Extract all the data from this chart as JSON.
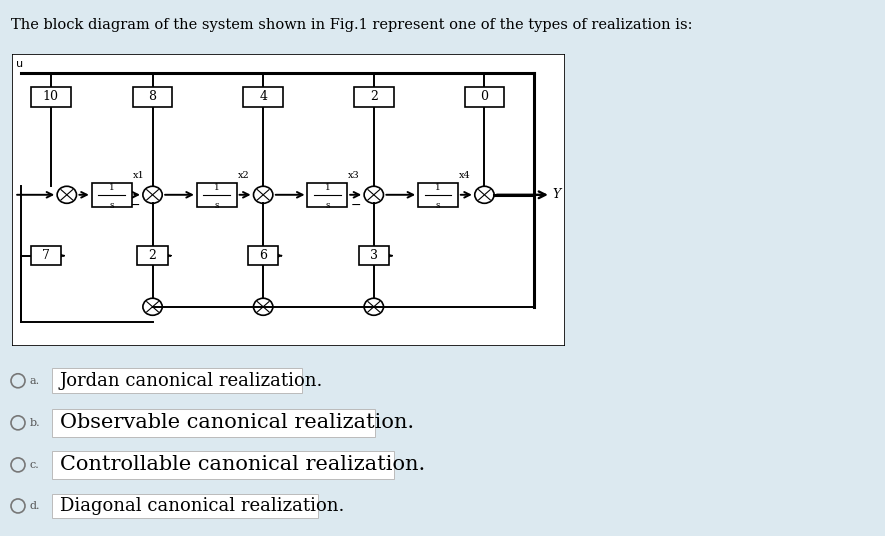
{
  "title": "The block diagram of the system shown in Fig.1 represent one of the types of realization is:",
  "bg_color": "#dce9f0",
  "diagram_bg": "#ffffff",
  "options": [
    {
      "label": "a.",
      "text": "Jordan canonical realization."
    },
    {
      "label": "b.",
      "text": "Observable canonical realization."
    },
    {
      "label": "c.",
      "text": "Controllable canonical realization."
    },
    {
      "label": "d.",
      "text": "Diagonal canonical realization."
    }
  ],
  "top_gains": [
    "10",
    "8",
    "4",
    "2",
    "0"
  ],
  "bottom_gains": [
    "7",
    "2",
    "6",
    "3"
  ],
  "state_labels": [
    "x1",
    "x2",
    "x3",
    "x4"
  ],
  "option_fontsizes": [
    13,
    15,
    15,
    13
  ],
  "title_fontsize": 10.5
}
